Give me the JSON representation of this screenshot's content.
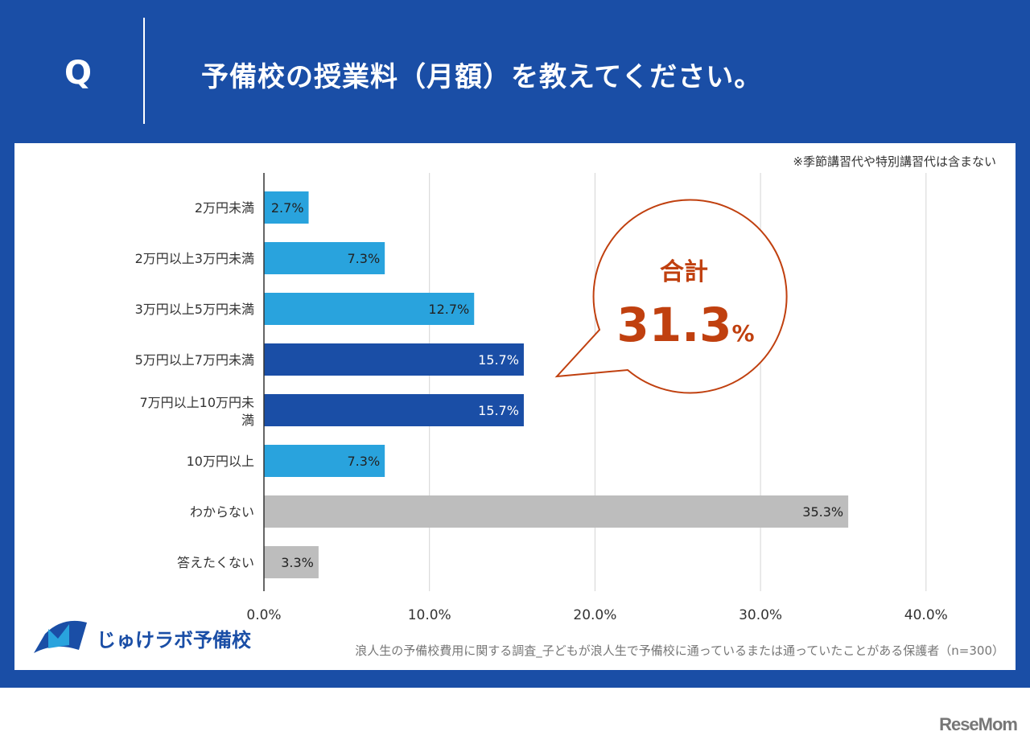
{
  "header": {
    "q_label": "Q",
    "title": "予備校の授業料（月額）を教えてください。"
  },
  "note": "※季節講習代や特別講習代は含まない",
  "callout": {
    "label": "合計",
    "value": "31.3",
    "unit": "%"
  },
  "source": "浪人生の予備校費用に関する調査_子どもが浪人生で予備校に通っているまたは通っていたことがある保護者（n=300）",
  "logo_text": "じゅけラボ予備校",
  "watermark": "ReseMom",
  "colors": {
    "background": "#1a4ea6",
    "light_bar": "#29a3dd",
    "dark_bar": "#1a4ea6",
    "gray_bar": "#bdbdbd",
    "callout": "#c0400f"
  },
  "chart_data": {
    "type": "bar",
    "orientation": "horizontal",
    "categories": [
      "2万円未満",
      "2万円以上3万円未満",
      "3万円以上5万円未満",
      "5万円以上7万円未満",
      "7万円以上10万円未満",
      "10万円以上",
      "わからない",
      "答えたくない"
    ],
    "values": [
      2.7,
      7.3,
      12.7,
      15.7,
      15.7,
      7.3,
      35.3,
      3.3
    ],
    "data_labels": [
      "2.7%",
      "7.3%",
      "12.7%",
      "15.7%",
      "15.7%",
      "7.3%",
      "35.3%",
      "3.3%"
    ],
    "bar_colors": [
      "#29a3dd",
      "#29a3dd",
      "#29a3dd",
      "#1a4ea6",
      "#1a4ea6",
      "#29a3dd",
      "#bdbdbd",
      "#bdbdbd"
    ],
    "xlim": [
      0,
      40
    ],
    "xticks": [
      "0.0%",
      "10.0%",
      "20.0%",
      "30.0%",
      "40.0%"
    ],
    "grid": true
  }
}
